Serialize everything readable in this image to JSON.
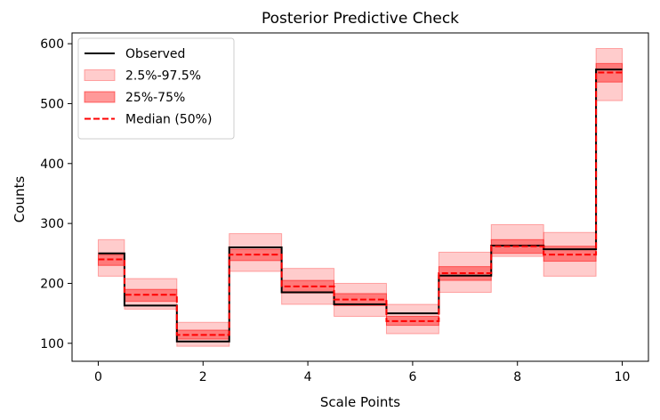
{
  "chart_data": {
    "type": "line",
    "title": "Posterior Predictive Check",
    "xlabel": "Scale Points",
    "ylabel": "Counts",
    "xlim": [
      -0.5,
      10.5
    ],
    "ylim": [
      70,
      618
    ],
    "xticks": [
      0,
      2,
      4,
      6,
      8,
      10
    ],
    "yticks": [
      100,
      200,
      300,
      400,
      500,
      600
    ],
    "legend_position": "top-left",
    "step": "mid",
    "x": [
      0,
      1,
      2,
      3,
      4,
      5,
      6,
      7,
      8,
      9,
      10
    ],
    "series": [
      {
        "name": "Observed",
        "style": "solid",
        "color": "#000000",
        "values": [
          250,
          163,
          103,
          260,
          185,
          165,
          150,
          213,
          263,
          257,
          557
        ]
      },
      {
        "name": "2.5%-97.5%",
        "kind": "band",
        "color": "#ff0000",
        "opacity": 0.2,
        "lower": [
          212,
          157,
          95,
          220,
          165,
          145,
          116,
          185,
          245,
          212,
          505
        ],
        "upper": [
          273,
          208,
          135,
          283,
          225,
          200,
          165,
          252,
          298,
          285,
          592
        ]
      },
      {
        "name": "25%-75%",
        "kind": "band",
        "color": "#ff0000",
        "opacity": 0.4,
        "lower": [
          230,
          170,
          107,
          238,
          184,
          163,
          130,
          205,
          250,
          237,
          536
        ],
        "upper": [
          248,
          190,
          122,
          257,
          205,
          183,
          145,
          228,
          273,
          262,
          567
        ]
      },
      {
        "name": "Median (50%)",
        "style": "dashed",
        "color": "#ff0000",
        "values": [
          240,
          181,
          114,
          248,
          195,
          173,
          137,
          217,
          262,
          248,
          552
        ]
      }
    ]
  }
}
